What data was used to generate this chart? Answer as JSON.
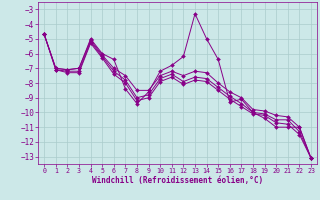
{
  "xlabel": "Windchill (Refroidissement éolien,°C)",
  "background_color": "#cce8e8",
  "grid_color": "#aacccc",
  "line_color": "#880088",
  "xlim": [
    -0.5,
    23.5
  ],
  "ylim": [
    -13.5,
    -2.5
  ],
  "yticks": [
    -3,
    -4,
    -5,
    -6,
    -7,
    -8,
    -9,
    -10,
    -11,
    -12,
    -13
  ],
  "xticks": [
    0,
    1,
    2,
    3,
    4,
    5,
    6,
    7,
    8,
    9,
    10,
    11,
    12,
    13,
    14,
    15,
    16,
    17,
    18,
    19,
    20,
    21,
    22,
    23
  ],
  "series": [
    {
      "x": [
        0,
        1,
        2,
        3,
        4,
        5,
        6,
        7,
        8,
        9,
        10,
        11,
        12,
        13,
        14,
        15,
        16,
        17,
        18,
        19,
        20,
        21,
        22,
        23
      ],
      "y": [
        -4.7,
        -7.0,
        -7.1,
        -7.0,
        -5.0,
        -6.0,
        -6.4,
        -8.4,
        -9.4,
        -8.6,
        -7.2,
        -6.8,
        -6.2,
        -3.3,
        -5.0,
        -6.4,
        -9.3,
        -9.1,
        -10.0,
        -10.4,
        -11.0,
        -11.0,
        -11.0,
        -13.1
      ]
    },
    {
      "x": [
        0,
        1,
        2,
        3,
        4,
        5,
        6,
        7,
        8,
        9,
        10,
        11,
        12,
        13,
        14,
        15,
        16,
        17,
        18,
        19,
        20,
        21,
        22,
        23
      ],
      "y": [
        -4.7,
        -7.0,
        -7.1,
        -7.0,
        -5.1,
        -6.1,
        -7.0,
        -7.5,
        -8.5,
        -8.5,
        -7.5,
        -7.2,
        -7.5,
        -7.2,
        -7.3,
        -8.0,
        -8.6,
        -9.0,
        -9.8,
        -9.9,
        -10.2,
        -10.3,
        -11.0,
        -13.1
      ]
    },
    {
      "x": [
        0,
        1,
        2,
        3,
        4,
        5,
        6,
        7,
        8,
        9,
        10,
        11,
        12,
        13,
        14,
        15,
        16,
        17,
        18,
        19,
        20,
        21,
        22,
        23
      ],
      "y": [
        -4.7,
        -7.1,
        -7.2,
        -7.2,
        -5.2,
        -6.2,
        -7.2,
        -7.8,
        -9.0,
        -8.8,
        -7.7,
        -7.4,
        -7.9,
        -7.6,
        -7.7,
        -8.3,
        -8.9,
        -9.4,
        -10.0,
        -10.1,
        -10.5,
        -10.5,
        -11.3,
        -13.1
      ]
    },
    {
      "x": [
        0,
        1,
        2,
        3,
        4,
        5,
        6,
        7,
        8,
        9,
        10,
        11,
        12,
        13,
        14,
        15,
        16,
        17,
        18,
        19,
        20,
        21,
        22,
        23
      ],
      "y": [
        -4.7,
        -7.1,
        -7.3,
        -7.3,
        -5.3,
        -6.3,
        -7.4,
        -8.0,
        -9.2,
        -9.0,
        -7.9,
        -7.6,
        -8.1,
        -7.8,
        -7.9,
        -8.5,
        -9.1,
        -9.6,
        -10.1,
        -10.2,
        -10.7,
        -10.8,
        -11.5,
        -13.1
      ]
    }
  ]
}
